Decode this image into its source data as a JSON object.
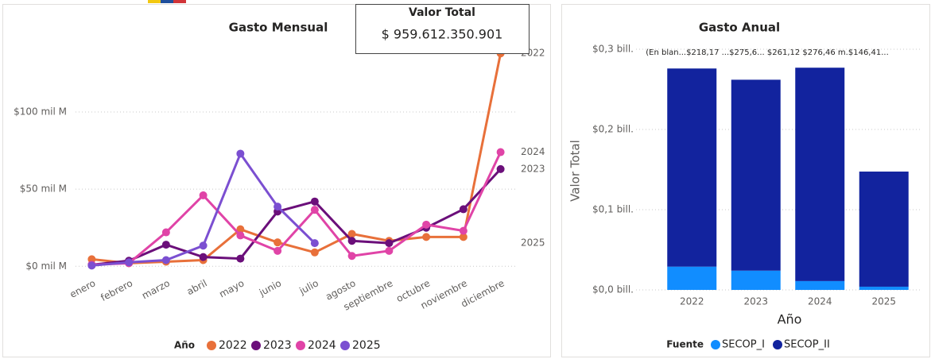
{
  "card": {
    "label": "Valor Total",
    "value": "$ 959.612.350.901"
  },
  "chart_data": [
    {
      "type": "line",
      "title": "Gasto Mensual",
      "legend_title": "Año",
      "categories": [
        "enero",
        "febrero",
        "marzo",
        "abril",
        "mayo",
        "junio",
        "julio",
        "agosto",
        "septiembre",
        "octubre",
        "noviembre",
        "diciembre"
      ],
      "series": [
        {
          "name": "2022",
          "color": "#e8703a",
          "values": [
            4.6,
            2,
            3,
            4,
            24,
            15.5,
            9,
            21,
            16.5,
            19,
            19,
            138
          ]
        },
        {
          "name": "2023",
          "color": "#6b0f7a",
          "values": [
            1,
            3.6,
            14,
            6,
            5,
            35.5,
            42,
            16.5,
            15,
            25,
            37,
            63
          ]
        },
        {
          "name": "2024",
          "color": "#e044a7",
          "values": [
            1,
            2,
            22,
            46,
            20,
            10,
            36.6,
            6.7,
            10,
            27,
            23,
            74
          ]
        },
        {
          "name": "2025",
          "color": "#7b4fd1",
          "values": [
            0.5,
            2.6,
            4,
            13.4,
            73,
            38.7,
            15,
            null,
            null,
            null,
            null,
            null
          ]
        }
      ],
      "ylim": [
        -5,
        152
      ],
      "yticks": [
        {
          "value": 0,
          "label": "$0 mil M"
        },
        {
          "value": 50,
          "label": "$50 mil M"
        },
        {
          "value": 100,
          "label": "$100 mil M"
        }
      ],
      "grid": true,
      "legend": "bottom"
    },
    {
      "type": "stacked_bar",
      "title": "Gasto Anual",
      "y_label": "Valor Total",
      "x_label": "Año",
      "legend_title": "Fuente",
      "annotation": "(En blan...$218,17 ...$275,6...  $261,12  $276,46 m.$146,41...",
      "categories": [
        "2022",
        "2023",
        "2024",
        "2025"
      ],
      "series": [
        {
          "name": "SECOP_I",
          "color": "#118dff",
          "values": [
            0.029,
            0.024,
            0.011,
            0.004
          ]
        },
        {
          "name": "SECOP_II",
          "color": "#12239e",
          "values": [
            0.247,
            0.238,
            0.266,
            0.1435
          ]
        }
      ],
      "ylim": [
        0,
        0.3
      ],
      "yticks": [
        {
          "value": 0,
          "label": "$0,0 bill."
        },
        {
          "value": 0.1,
          "label": "$0,1 bill."
        },
        {
          "value": 0.2,
          "label": "$0,2 bill."
        },
        {
          "value": 0.3,
          "label": "$0,3 bill."
        }
      ],
      "grid": true,
      "legend": "bottom"
    }
  ]
}
